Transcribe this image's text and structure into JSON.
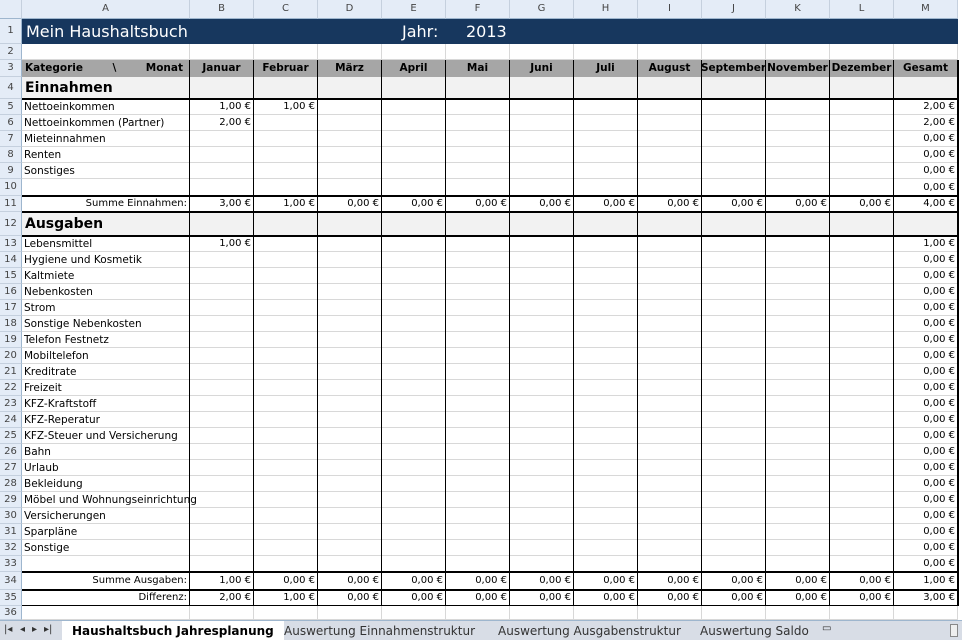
{
  "columns": [
    "A",
    "B",
    "C",
    "D",
    "E",
    "F",
    "G",
    "H",
    "I",
    "J",
    "K",
    "L",
    "M"
  ],
  "title": "Mein Haushaltsbuch",
  "year_label": "Jahr:",
  "year": "2013",
  "header": {
    "kategorie": "Kategorie",
    "separator": "\\",
    "monat": "Monat",
    "months": [
      "Januar",
      "Februar",
      "März",
      "April",
      "Mai",
      "Juni",
      "Juli",
      "August",
      "September",
      "November",
      "Dezember",
      "Gesamt"
    ]
  },
  "sections": {
    "einnahmen": "Einnahmen",
    "ausgaben": "Ausgaben"
  },
  "rows": [
    {
      "n": 5,
      "label": "Nettoeinkommen",
      "v": [
        "1,00 €",
        "1,00 €",
        "",
        "",
        "",
        "",
        "",
        "",
        "",
        "",
        "",
        "2,00 €"
      ]
    },
    {
      "n": 6,
      "label": "Nettoeinkommen (Partner)",
      "v": [
        "2,00 €",
        "",
        "",
        "",
        "",
        "",
        "",
        "",
        "",
        "",
        "",
        "2,00 €"
      ]
    },
    {
      "n": 7,
      "label": "Mieteinnahmen",
      "v": [
        "",
        "",
        "",
        "",
        "",
        "",
        "",
        "",
        "",
        "",
        "",
        "0,00 €"
      ]
    },
    {
      "n": 8,
      "label": "Renten",
      "v": [
        "",
        "",
        "",
        "",
        "",
        "",
        "",
        "",
        "",
        "",
        "",
        "0,00 €"
      ]
    },
    {
      "n": 9,
      "label": "Sonstiges",
      "v": [
        "",
        "",
        "",
        "",
        "",
        "",
        "",
        "",
        "",
        "",
        "",
        "0,00 €"
      ]
    },
    {
      "n": 10,
      "label": "",
      "v": [
        "",
        "",
        "",
        "",
        "",
        "",
        "",
        "",
        "",
        "",
        "",
        "0,00 €"
      ]
    },
    {
      "n": 11,
      "label": "Summe Einnahmen:",
      "sum": true,
      "v": [
        "3,00 €",
        "1,00 €",
        "0,00 €",
        "0,00 €",
        "0,00 €",
        "0,00 €",
        "0,00 €",
        "0,00 €",
        "0,00 €",
        "0,00 €",
        "0,00 €",
        "4,00 €"
      ]
    },
    {
      "n": 13,
      "label": "Lebensmittel",
      "v": [
        "1,00 €",
        "",
        "",
        "",
        "",
        "",
        "",
        "",
        "",
        "",
        "",
        "1,00 €"
      ]
    },
    {
      "n": 14,
      "label": "Hygiene und Kosmetik",
      "v": [
        "",
        "",
        "",
        "",
        "",
        "",
        "",
        "",
        "",
        "",
        "",
        "0,00 €"
      ]
    },
    {
      "n": 15,
      "label": "Kaltmiete",
      "v": [
        "",
        "",
        "",
        "",
        "",
        "",
        "",
        "",
        "",
        "",
        "",
        "0,00 €"
      ]
    },
    {
      "n": 16,
      "label": "Nebenkosten",
      "v": [
        "",
        "",
        "",
        "",
        "",
        "",
        "",
        "",
        "",
        "",
        "",
        "0,00 €"
      ]
    },
    {
      "n": 17,
      "label": "Strom",
      "v": [
        "",
        "",
        "",
        "",
        "",
        "",
        "",
        "",
        "",
        "",
        "",
        "0,00 €"
      ]
    },
    {
      "n": 18,
      "label": "Sonstige Nebenkosten",
      "v": [
        "",
        "",
        "",
        "",
        "",
        "",
        "",
        "",
        "",
        "",
        "",
        "0,00 €"
      ]
    },
    {
      "n": 19,
      "label": "Telefon Festnetz",
      "v": [
        "",
        "",
        "",
        "",
        "",
        "",
        "",
        "",
        "",
        "",
        "",
        "0,00 €"
      ]
    },
    {
      "n": 20,
      "label": "Mobiltelefon",
      "v": [
        "",
        "",
        "",
        "",
        "",
        "",
        "",
        "",
        "",
        "",
        "",
        "0,00 €"
      ]
    },
    {
      "n": 21,
      "label": "Kreditrate",
      "v": [
        "",
        "",
        "",
        "",
        "",
        "",
        "",
        "",
        "",
        "",
        "",
        "0,00 €"
      ]
    },
    {
      "n": 22,
      "label": "Freizeit",
      "v": [
        "",
        "",
        "",
        "",
        "",
        "",
        "",
        "",
        "",
        "",
        "",
        "0,00 €"
      ]
    },
    {
      "n": 23,
      "label": "KFZ-Kraftstoff",
      "v": [
        "",
        "",
        "",
        "",
        "",
        "",
        "",
        "",
        "",
        "",
        "",
        "0,00 €"
      ]
    },
    {
      "n": 24,
      "label": "KFZ-Reperatur",
      "v": [
        "",
        "",
        "",
        "",
        "",
        "",
        "",
        "",
        "",
        "",
        "",
        "0,00 €"
      ]
    },
    {
      "n": 25,
      "label": "KFZ-Steuer und Versicherung",
      "v": [
        "",
        "",
        "",
        "",
        "",
        "",
        "",
        "",
        "",
        "",
        "",
        "0,00 €"
      ]
    },
    {
      "n": 26,
      "label": "Bahn",
      "v": [
        "",
        "",
        "",
        "",
        "",
        "",
        "",
        "",
        "",
        "",
        "",
        "0,00 €"
      ]
    },
    {
      "n": 27,
      "label": "Urlaub",
      "v": [
        "",
        "",
        "",
        "",
        "",
        "",
        "",
        "",
        "",
        "",
        "",
        "0,00 €"
      ]
    },
    {
      "n": 28,
      "label": "Bekleidung",
      "v": [
        "",
        "",
        "",
        "",
        "",
        "",
        "",
        "",
        "",
        "",
        "",
        "0,00 €"
      ]
    },
    {
      "n": 29,
      "label": "Möbel und Wohnungseinrichtung",
      "v": [
        "",
        "",
        "",
        "",
        "",
        "",
        "",
        "",
        "",
        "",
        "",
        "0,00 €"
      ]
    },
    {
      "n": 30,
      "label": "Versicherungen",
      "v": [
        "",
        "",
        "",
        "",
        "",
        "",
        "",
        "",
        "",
        "",
        "",
        "0,00 €"
      ]
    },
    {
      "n": 31,
      "label": "Sparpläne",
      "v": [
        "",
        "",
        "",
        "",
        "",
        "",
        "",
        "",
        "",
        "",
        "",
        "0,00 €"
      ]
    },
    {
      "n": 32,
      "label": "Sonstige",
      "v": [
        "",
        "",
        "",
        "",
        "",
        "",
        "",
        "",
        "",
        "",
        "",
        "0,00 €"
      ]
    },
    {
      "n": 33,
      "label": "",
      "v": [
        "",
        "",
        "",
        "",
        "",
        "",
        "",
        "",
        "",
        "",
        "",
        "0,00 €"
      ]
    },
    {
      "n": 34,
      "label": "Summe Ausgaben:",
      "sum": true,
      "v": [
        "1,00 €",
        "0,00 €",
        "0,00 €",
        "0,00 €",
        "0,00 €",
        "0,00 €",
        "0,00 €",
        "0,00 €",
        "0,00 €",
        "0,00 €",
        "0,00 €",
        "1,00 €"
      ]
    },
    {
      "n": 35,
      "label": "Differenz:",
      "sum": true,
      "v": [
        "2,00 €",
        "1,00 €",
        "0,00 €",
        "0,00 €",
        "0,00 €",
        "0,00 €",
        "0,00 €",
        "0,00 €",
        "0,00 €",
        "0,00 €",
        "0,00 €",
        "3,00 €"
      ]
    }
  ],
  "tabs": [
    "Haushaltsbuch Jahresplanung",
    "Auswertung Einnahmenstruktur",
    "Auswertung Ausgabenstruktur",
    "Auswertung Saldo"
  ],
  "active_tab": 0,
  "colors": {
    "title_bg": "#17375e",
    "header_bg": "#a6a6a6",
    "section_bg": "#f2f2f2"
  }
}
